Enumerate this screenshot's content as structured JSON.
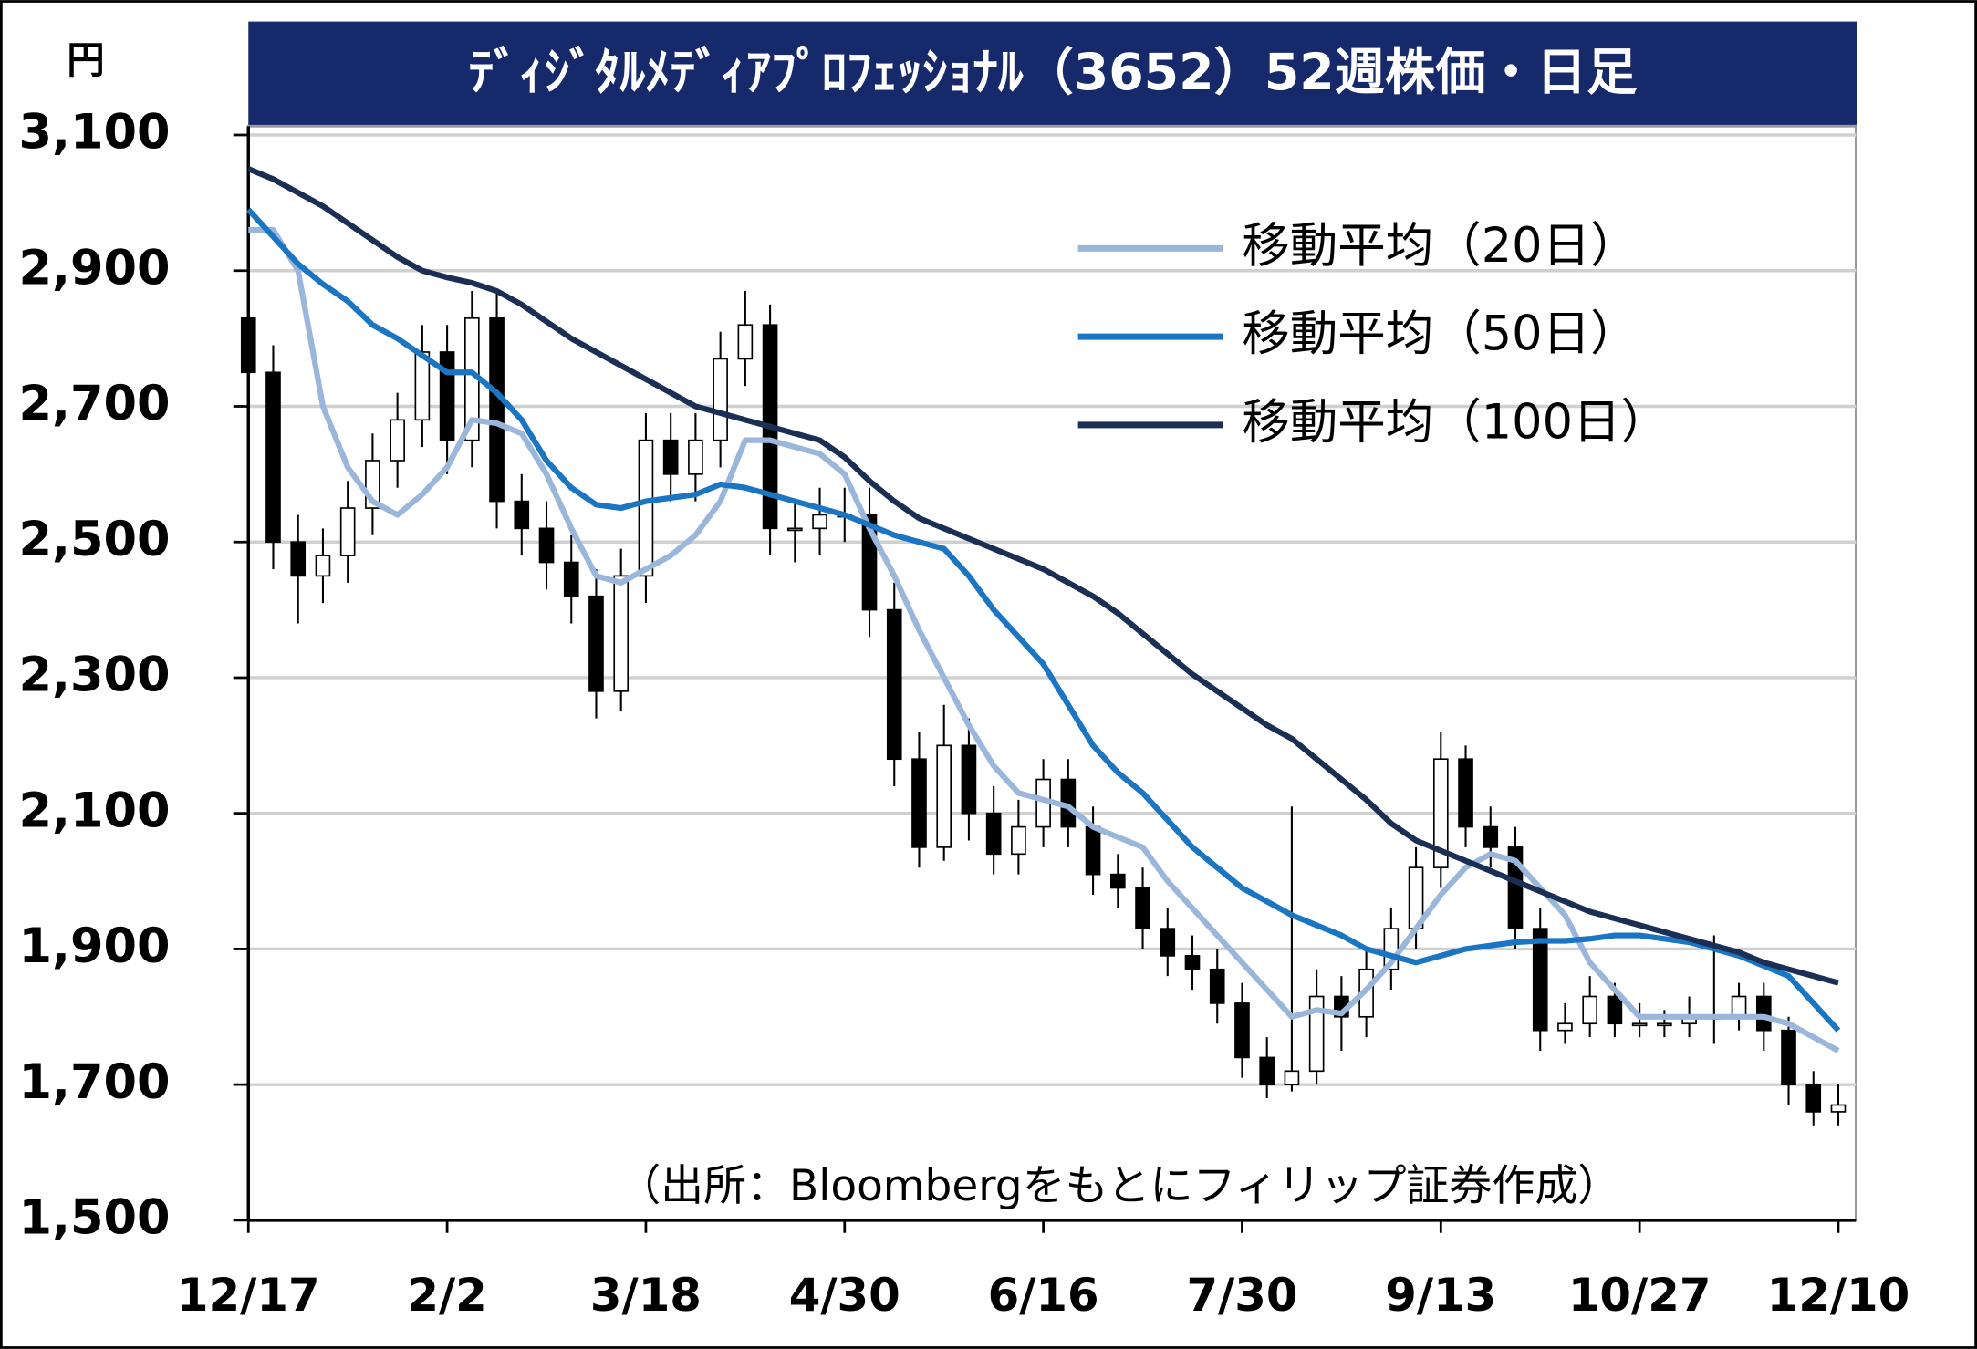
{
  "chart_data": {
    "type": "candlestick",
    "title": "ﾃﾞｨｼﾞﾀﾙﾒﾃﾞｨｱﾌﾟﾛﾌｪｯｼｮﾅﾙ（3652）52週株価・日足",
    "y_unit": "円",
    "source": "（出所：Bloombergをもとにフィリップ証券作成）",
    "categories": [
      "12/17",
      null,
      null,
      null,
      null,
      null,
      null,
      null,
      "2/2",
      null,
      null,
      null,
      null,
      null,
      null,
      null,
      "3/18",
      null,
      null,
      null,
      null,
      null,
      null,
      null,
      "4/30",
      null,
      null,
      null,
      null,
      null,
      null,
      null,
      "6/16",
      null,
      null,
      null,
      null,
      null,
      null,
      null,
      "7/30",
      null,
      null,
      null,
      null,
      null,
      null,
      null,
      "9/13",
      null,
      null,
      null,
      null,
      null,
      null,
      null,
      "10/27",
      null,
      null,
      null,
      null,
      null,
      null,
      null,
      "12/10"
    ],
    "open": [
      2830,
      2750,
      2500,
      2450,
      2480,
      2550,
      2620,
      2680,
      2780,
      2650,
      2830,
      2560,
      2520,
      2470,
      2420,
      2280,
      2450,
      2650,
      2600,
      2650,
      2770,
      2820,
      2520,
      2520,
      2540,
      2540,
      2400,
      2180,
      2050,
      2200,
      2100,
      2040,
      2080,
      2150,
      2080,
      2010,
      1990,
      1930,
      1890,
      1870,
      1820,
      1740,
      1700,
      1720,
      1830,
      1800,
      1870,
      1930,
      2020,
      2180,
      2080,
      2050,
      1930,
      1780,
      1790,
      1830,
      1790,
      1790,
      1790,
      1800,
      1800,
      1830,
      1780,
      1700,
      1660
    ],
    "high": [
      2840,
      2790,
      2540,
      2520,
      2590,
      2660,
      2720,
      2820,
      2820,
      2870,
      2870,
      2600,
      2560,
      2510,
      2460,
      2490,
      2690,
      2690,
      2690,
      2810,
      2870,
      2850,
      2560,
      2580,
      2580,
      2580,
      2440,
      2220,
      2260,
      2240,
      2140,
      2120,
      2180,
      2180,
      2110,
      2040,
      2020,
      1960,
      1920,
      1900,
      1850,
      1770,
      2110,
      1870,
      1860,
      1900,
      1960,
      2050,
      2220,
      2200,
      2110,
      2080,
      1960,
      1820,
      1860,
      1850,
      1820,
      1810,
      1830,
      1920,
      1850,
      1850,
      1800,
      1720,
      1700
    ],
    "low": [
      2710,
      2460,
      2380,
      2410,
      2440,
      2510,
      2580,
      2640,
      2600,
      2610,
      2520,
      2480,
      2430,
      2380,
      2240,
      2250,
      2410,
      2560,
      2560,
      2610,
      2730,
      2480,
      2470,
      2480,
      2500,
      2360,
      2140,
      2020,
      2030,
      2060,
      2010,
      2010,
      2050,
      2050,
      1980,
      1960,
      1900,
      1860,
      1840,
      1790,
      1710,
      1680,
      1690,
      1700,
      1750,
      1770,
      1840,
      1900,
      1990,
      2050,
      2020,
      1900,
      1750,
      1760,
      1770,
      1770,
      1770,
      1770,
      1770,
      1760,
      1780,
      1750,
      1670,
      1640,
      1640
    ],
    "close": [
      2750,
      2500,
      2450,
      2480,
      2550,
      2620,
      2680,
      2780,
      2650,
      2830,
      2560,
      2520,
      2470,
      2420,
      2280,
      2450,
      2650,
      2600,
      2650,
      2770,
      2820,
      2520,
      2520,
      2540,
      2540,
      2400,
      2180,
      2050,
      2200,
      2100,
      2040,
      2080,
      2150,
      2080,
      2010,
      1990,
      1930,
      1890,
      1870,
      1820,
      1740,
      1700,
      1720,
      1830,
      1800,
      1870,
      1930,
      2020,
      2180,
      2080,
      2050,
      1930,
      1780,
      1790,
      1830,
      1790,
      1790,
      1790,
      1800,
      1800,
      1830,
      1780,
      1700,
      1660,
      1670
    ],
    "up_color": "#ffffff",
    "down_color": "#000000",
    "series": [
      {
        "name": "移動平均（20日）",
        "color": "#9ab6da",
        "values": [
          2960,
          2960,
          2900,
          2700,
          2610,
          2560,
          2540,
          2570,
          2610,
          2680,
          2675,
          2660,
          2600,
          2520,
          2450,
          2440,
          2460,
          2480,
          2510,
          2560,
          2650,
          2650,
          2640,
          2630,
          2600,
          2520,
          2450,
          2370,
          2300,
          2230,
          2170,
          2130,
          2120,
          2110,
          2080,
          2065,
          2050,
          2000,
          1960,
          1920,
          1880,
          1840,
          1800,
          1810,
          1805,
          1840,
          1880,
          1930,
          1980,
          2020,
          2040,
          2030,
          1990,
          1950,
          1880,
          1840,
          1800,
          1800,
          1800,
          1800,
          1800,
          1800,
          1790,
          1770,
          1750
        ]
      },
      {
        "name": "移動平均（50日）",
        "color": "#1a75c2",
        "values": [
          2990,
          2950,
          2910,
          2880,
          2855,
          2820,
          2800,
          2775,
          2750,
          2750,
          2720,
          2680,
          2620,
          2580,
          2555,
          2550,
          2560,
          2565,
          2570,
          2585,
          2580,
          2570,
          2560,
          2550,
          2540,
          2525,
          2510,
          2500,
          2490,
          2450,
          2400,
          2360,
          2320,
          2260,
          2200,
          2160,
          2130,
          2090,
          2050,
          2020,
          1990,
          1970,
          1950,
          1935,
          1920,
          1900,
          1890,
          1880,
          1890,
          1900,
          1905,
          1910,
          1912,
          1912,
          1915,
          1920,
          1920,
          1915,
          1910,
          1900,
          1890,
          1875,
          1860,
          1820,
          1780
        ]
      },
      {
        "name": "移動平均（100日）",
        "color": "#1b2f55",
        "values": [
          3050,
          3035,
          3015,
          2995,
          2970,
          2945,
          2920,
          2900,
          2890,
          2882,
          2870,
          2850,
          2825,
          2800,
          2780,
          2760,
          2740,
          2720,
          2700,
          2690,
          2680,
          2670,
          2660,
          2650,
          2625,
          2590,
          2560,
          2535,
          2520,
          2505,
          2490,
          2475,
          2460,
          2440,
          2420,
          2395,
          2365,
          2335,
          2305,
          2280,
          2255,
          2230,
          2210,
          2180,
          2150,
          2120,
          2085,
          2060,
          2045,
          2030,
          2015,
          2000,
          1985,
          1970,
          1955,
          1945,
          1935,
          1925,
          1915,
          1905,
          1895,
          1880,
          1870,
          1860,
          1850
        ]
      }
    ],
    "ylim": [
      1500,
      3100
    ],
    "yticks": [
      {
        "value": 1500,
        "label": "1,500"
      },
      {
        "value": 1700,
        "label": "1,700"
      },
      {
        "value": 1900,
        "label": "1,900"
      },
      {
        "value": 2100,
        "label": "2,100"
      },
      {
        "value": 2300,
        "label": "2,300"
      },
      {
        "value": 2500,
        "label": "2,500"
      },
      {
        "value": 2700,
        "label": "2,700"
      },
      {
        "value": 2900,
        "label": "2,900"
      },
      {
        "value": 3100,
        "label": "3,100"
      }
    ],
    "grid": true,
    "title_color": "#16296a"
  }
}
